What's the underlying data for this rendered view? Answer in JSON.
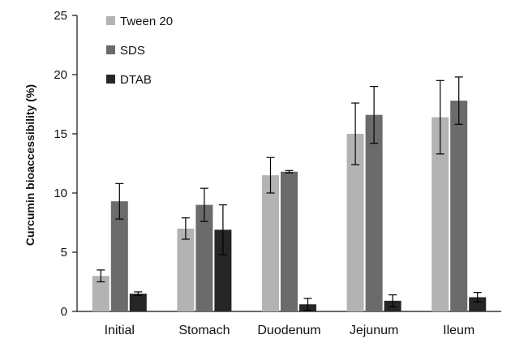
{
  "chart_data": {
    "type": "bar",
    "title": "",
    "xlabel": "",
    "ylabel": "Curcumin bioaccessibility (%)",
    "ylim": [
      0,
      25
    ],
    "yticks": [
      0,
      5,
      10,
      15,
      20,
      25
    ],
    "grid": false,
    "legend_position": "top-left",
    "categories": [
      "Initial",
      "Stomach",
      "Duodenum",
      "Jejunum",
      "Ileum"
    ],
    "series": [
      {
        "name": "Tween 20",
        "color": "#b3b3b3",
        "values": [
          3.0,
          7.0,
          11.5,
          15.0,
          16.4
        ],
        "errors": [
          0.5,
          0.9,
          1.5,
          2.6,
          3.1
        ]
      },
      {
        "name": "SDS",
        "color": "#6b6b6b",
        "values": [
          9.3,
          9.0,
          11.8,
          16.6,
          17.8
        ],
        "errors": [
          1.5,
          1.4,
          0.1,
          2.4,
          2.0
        ]
      },
      {
        "name": "DTAB",
        "color": "#262626",
        "values": [
          1.5,
          6.9,
          0.6,
          0.9,
          1.2
        ],
        "errors": [
          0.15,
          2.1,
          0.5,
          0.5,
          0.4
        ]
      }
    ]
  }
}
